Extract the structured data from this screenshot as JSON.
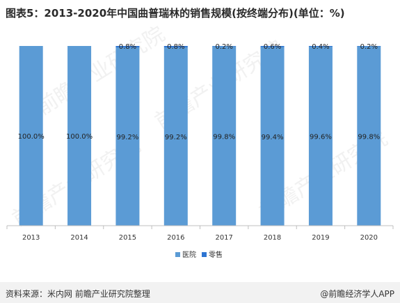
{
  "title": "图表5：2013-2020年中国曲普瑞林的销售规模(按终端分布)(单位：%)",
  "footer": {
    "source": "资料来源：米内网 前瞻产业研究院整理",
    "brand": "@前瞻经济学人APP"
  },
  "watermark": {
    "text": "前瞻产业研究院"
  },
  "chart_data": {
    "type": "bar",
    "stacked": true,
    "title": "图表5：2013-2020年中国曲普瑞林的销售规模(按终端分布)(单位：%)",
    "xlabel": "",
    "ylabel": "",
    "ylim": [
      0,
      100
    ],
    "grid": false,
    "legend_position": "bottom",
    "categories": [
      "2013",
      "2014",
      "2015",
      "2016",
      "2017",
      "2018",
      "2019",
      "2020"
    ],
    "series": [
      {
        "name": "医院",
        "color": "#5b9bd5",
        "values": [
          100.0,
          100.0,
          99.2,
          99.2,
          99.8,
          99.4,
          99.6,
          99.8
        ],
        "labels": [
          "100.0%",
          "100.0%",
          "99.2%",
          "99.2%",
          "99.8%",
          "99.4%",
          "99.6%",
          "99.8%"
        ]
      },
      {
        "name": "零售",
        "color": "#2e75d2",
        "values": [
          0.0,
          0.0,
          0.8,
          0.8,
          0.2,
          0.6,
          0.4,
          0.2
        ],
        "labels": [
          "",
          "",
          "0.8%",
          "0.8%",
          "0.2%",
          "0.6%",
          "0.4%",
          "0.2%"
        ]
      }
    ]
  }
}
